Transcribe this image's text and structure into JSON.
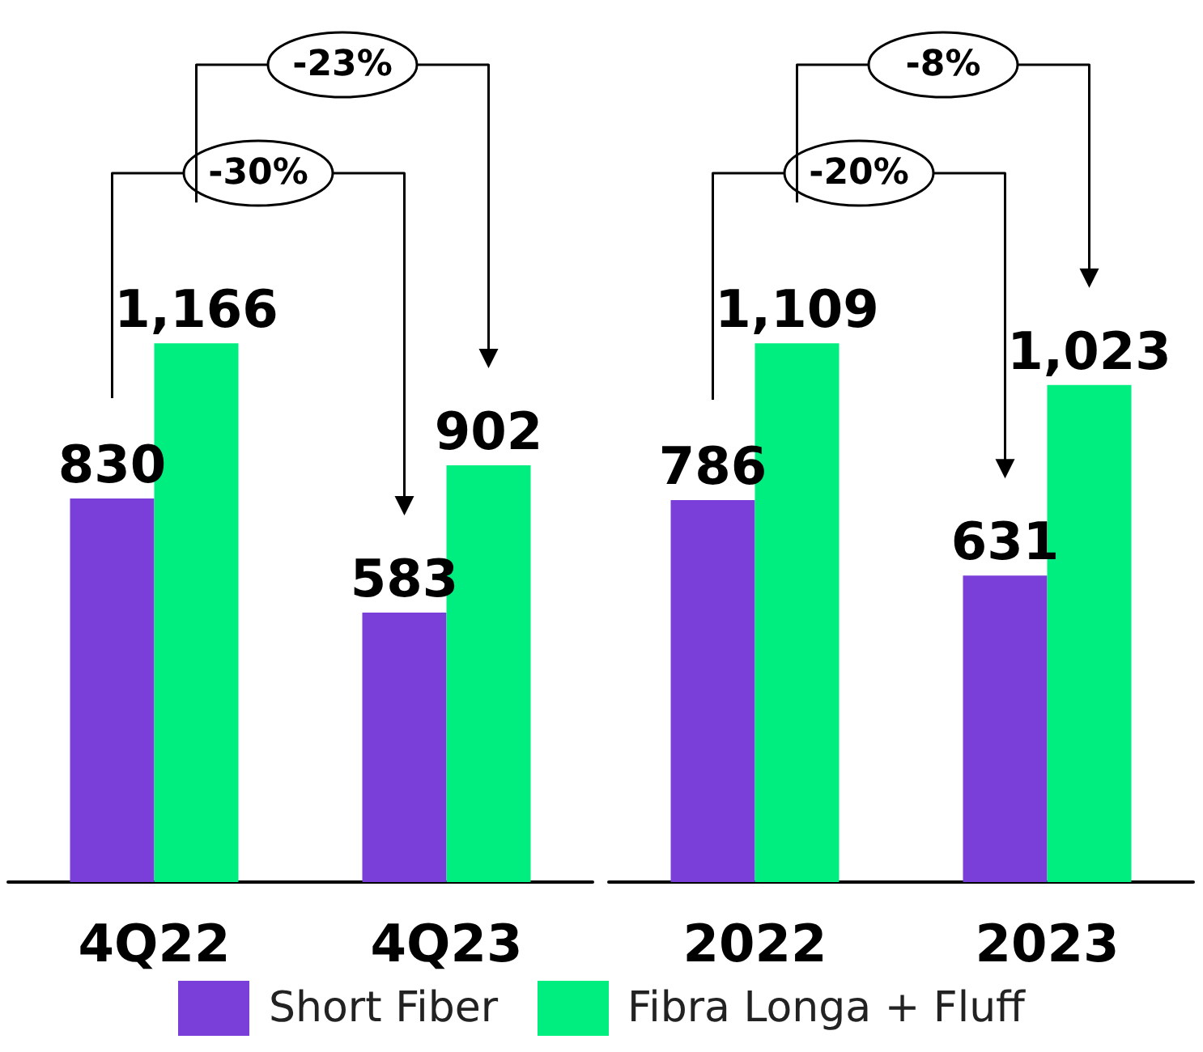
{
  "chart_data": [
    {
      "type": "bar",
      "categories": [
        "4Q22",
        "4Q23"
      ],
      "series": [
        {
          "name": "Short Fiber",
          "color": "#7b3fd9",
          "values": [
            830,
            583
          ],
          "value_labels": [
            "830",
            "583"
          ]
        },
        {
          "name": "Fibra Longa + Fluff",
          "color": "#00ee80",
          "values": [
            1166,
            902
          ],
          "value_labels": [
            "1,166",
            "902"
          ]
        }
      ],
      "annotations": [
        "-30%",
        "-23%"
      ],
      "legend": "bottom"
    },
    {
      "type": "bar",
      "categories": [
        "2022",
        "2023"
      ],
      "series": [
        {
          "color": "#7b3fd9",
          "values": [
            786,
            631
          ],
          "value_labels": [
            "786",
            "631"
          ]
        },
        {
          "color": "#00ee80",
          "values": [
            1109,
            1023
          ],
          "value_labels": [
            "1,109",
            "1,023"
          ]
        }
      ],
      "annotations": [
        "-20%",
        "-8%"
      ]
    }
  ]
}
